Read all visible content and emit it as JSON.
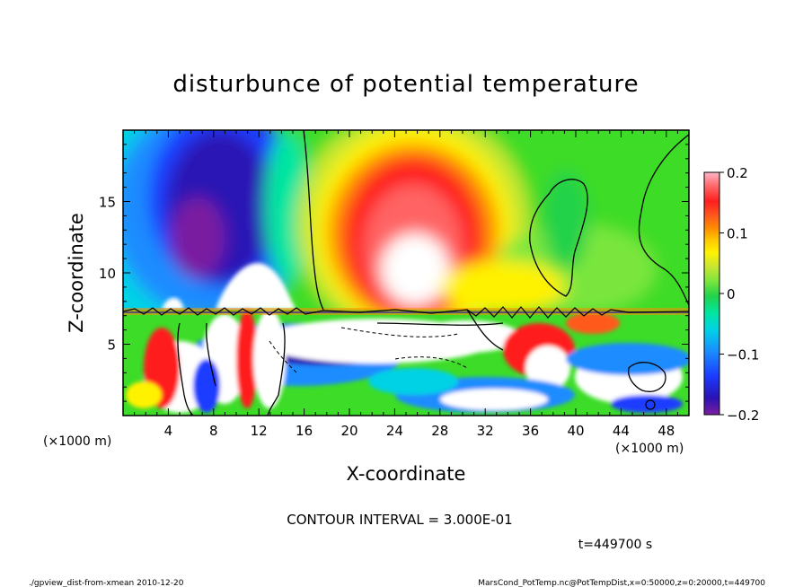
{
  "chart_data": {
    "type": "heatmap",
    "title": "disturbunce of potential temperature",
    "xlabel": "X-coordinate",
    "ylabel": "Z-coordinate",
    "x_unit_label": "(×1000 m)",
    "z_unit_label": "(×1000 m)",
    "xlim": [
      0,
      50
    ],
    "ylim": [
      0,
      20
    ],
    "x_ticks": [
      4,
      8,
      12,
      16,
      20,
      24,
      28,
      32,
      36,
      40,
      44,
      48
    ],
    "y_ticks": [
      5,
      10,
      15
    ],
    "colorbar": {
      "ticks": [
        "0.2",
        "0.1",
        "0",
        "−0.1",
        "−0.2"
      ],
      "tick_values": [
        0.2,
        0.1,
        0,
        -0.1,
        -0.2
      ],
      "range": [
        -0.2,
        0.2
      ],
      "colors": [
        "#7a1fa0",
        "#2a12b4",
        "#1a3cff",
        "#1a8cff",
        "#00d2e6",
        "#00e6a0",
        "#22d24a",
        "#7ae63c",
        "#c8e632",
        "#fff200",
        "#ffc800",
        "#ff8c00",
        "#ff5a1e",
        "#ff1e1e",
        "#ff6464",
        "#ffb4c8"
      ]
    },
    "contour_interval_text": "CONTOUR INTERVAL = 3.000E-01",
    "time_text": "t=449700 s",
    "footer_left": "./gpview_dist-from-xmean  2010-12-20",
    "footer_right": "MarsCond_PotTemp.nc@PotTempDist,x=0:50000,z=0:20000,t=449700"
  }
}
